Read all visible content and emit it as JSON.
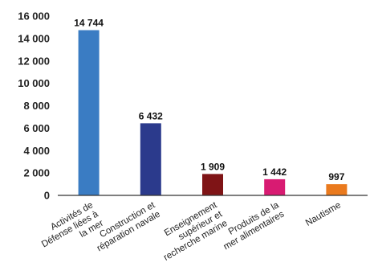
{
  "chart_data": {
    "type": "bar",
    "title": "",
    "xlabel": "",
    "ylabel": "",
    "ylim": [
      0,
      16000
    ],
    "yticks": [
      0,
      2000,
      4000,
      6000,
      8000,
      10000,
      12000,
      14000,
      16000
    ],
    "ytick_labels": [
      "0",
      "2 000",
      "4 000",
      "6 000",
      "8 000",
      "10 000",
      "12 000",
      "14 000",
      "16 000"
    ],
    "grid": false,
    "legend": "none",
    "categories": [
      [
        "Activités de",
        "Défense liées à",
        "la mer"
      ],
      [
        "Construction et",
        "réparation navale"
      ],
      [
        "Enseignement",
        "supérieur  et",
        "recherche marine"
      ],
      [
        "Produits de la",
        "mer alimentaires"
      ],
      [
        "Nautisme"
      ]
    ],
    "values": [
      14744,
      6432,
      1909,
      1442,
      997
    ],
    "value_labels": [
      "14 744",
      "6 432",
      "1 909",
      "1 442",
      "997"
    ],
    "colors": [
      "#3a7cc3",
      "#2b3a8c",
      "#7f1416",
      "#d81b72",
      "#ea7a1e"
    ]
  }
}
